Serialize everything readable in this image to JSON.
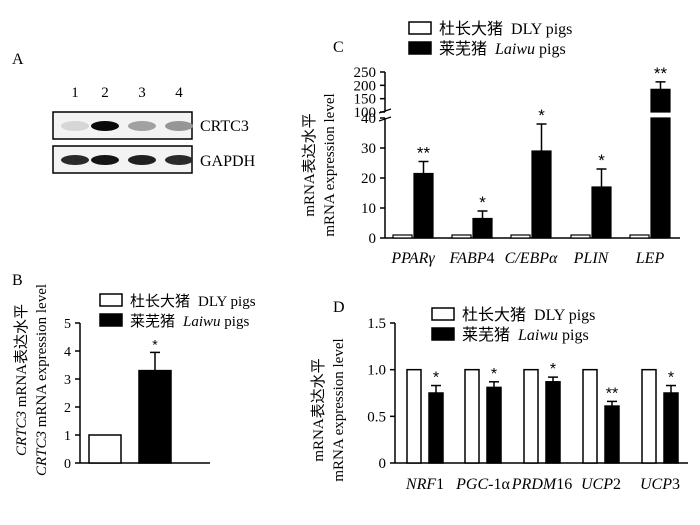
{
  "panels": {
    "A": {
      "letter": "A",
      "lanes": [
        "1",
        "2",
        "3",
        "4"
      ],
      "rows": [
        {
          "label": "CRTC3",
          "band_intensity": [
            0.05,
            1.0,
            0.3,
            0.35
          ]
        },
        {
          "label": "GAPDH",
          "band_intensity": [
            0.85,
            0.95,
            0.9,
            0.85
          ]
        }
      ]
    },
    "B": {
      "letter": "B",
      "ylabel_cn_gene": "CRTC3",
      "ylabel_cn_rest": " mRNA表达水平",
      "ylabel_en_gene": "CRTC3",
      "ylabel_en_rest": " mRNA expression level"
    },
    "C": {
      "letter": "C",
      "ylabel_cn": "mRNA表达水平",
      "ylabel_en": "mRNA expression level"
    },
    "D": {
      "letter": "D",
      "ylabel_cn": "mRNA表达水平",
      "ylabel_en": "mRNA expression level"
    }
  },
  "legend": {
    "dly_cn": "杜长大猪",
    "dly_en": "DLY pigs",
    "laiwu_cn": "莱芜猪",
    "laiwu_en_italic": "Laiwu",
    "laiwu_en_rest": " pigs"
  },
  "colors": {
    "dly": "#ffffff",
    "laiwu": "#000000",
    "stroke": "#000000"
  },
  "chart_data": [
    {
      "panel": "B",
      "type": "bar",
      "categories": [
        "DLY pigs",
        "Laiwu pigs"
      ],
      "series": [
        {
          "name": "mRNA expression",
          "values": [
            1.0,
            3.3
          ],
          "errors": [
            0,
            0.65
          ],
          "sig": [
            "",
            "*"
          ]
        }
      ],
      "ylim": [
        0,
        5
      ],
      "yticks": [
        0,
        1,
        2,
        3,
        4,
        5
      ],
      "ylabel": "CRTC3 mRNA expression level",
      "legend": "top-left",
      "grid": false
    },
    {
      "panel": "C",
      "type": "bar",
      "categories": [
        "PPARγ",
        "FABP4",
        "C/EBPα",
        "PLIN",
        "LEP"
      ],
      "series": [
        {
          "name": "DLY pigs",
          "values": [
            1,
            1,
            1,
            1,
            1
          ],
          "errors": [
            0,
            0,
            0,
            0,
            0
          ]
        },
        {
          "name": "Laiwu pigs",
          "values": [
            21.5,
            6.5,
            29,
            17,
            185
          ],
          "errors": [
            4,
            2.5,
            9,
            6,
            28
          ],
          "sig": [
            "**",
            "*",
            "*",
            "*",
            "**"
          ]
        }
      ],
      "ylim": [
        0,
        250
      ],
      "axis_break": {
        "lower": [
          0,
          40
        ],
        "upper": [
          100,
          250
        ]
      },
      "yticks_lower": [
        0,
        10,
        20,
        30,
        40
      ],
      "yticks_upper": [
        100,
        150,
        200,
        250
      ],
      "ylabel": "mRNA expression level",
      "legend": "top",
      "grid": false
    },
    {
      "panel": "D",
      "type": "bar",
      "categories": [
        "NRF1",
        "PGC-1α",
        "PRDM16",
        "UCP2",
        "UCP3"
      ],
      "series": [
        {
          "name": "DLY pigs",
          "values": [
            1,
            1,
            1,
            1,
            1
          ],
          "errors": [
            0,
            0,
            0,
            0,
            0
          ]
        },
        {
          "name": "Laiwu pigs",
          "values": [
            0.75,
            0.81,
            0.87,
            0.61,
            0.75
          ],
          "errors": [
            0.08,
            0.06,
            0.05,
            0.05,
            0.08
          ],
          "sig": [
            "*",
            "*",
            "*",
            "**",
            "*"
          ]
        }
      ],
      "ylim": [
        0,
        1.5
      ],
      "yticks": [
        "0",
        "0.5",
        "1.0",
        "1.5"
      ],
      "ylabel": "mRNA expression level",
      "legend": "top",
      "grid": false
    }
  ],
  "tick_labels": {
    "C": [
      {
        "italic": "PPARγ",
        "rest": ""
      },
      {
        "italic": "FABP",
        "rest": "4"
      },
      {
        "italic": "C/EBPα",
        "rest": ""
      },
      {
        "italic": "PLIN",
        "rest": ""
      },
      {
        "italic": "LEP",
        "rest": ""
      }
    ],
    "D": [
      {
        "italic": "NRF",
        "rest": "1"
      },
      {
        "italic": "PGC",
        "rest": "-1α"
      },
      {
        "italic": "PRDM",
        "rest": "16"
      },
      {
        "italic": "UCP",
        "rest": "2"
      },
      {
        "italic": "UCP",
        "rest": "3"
      }
    ]
  }
}
